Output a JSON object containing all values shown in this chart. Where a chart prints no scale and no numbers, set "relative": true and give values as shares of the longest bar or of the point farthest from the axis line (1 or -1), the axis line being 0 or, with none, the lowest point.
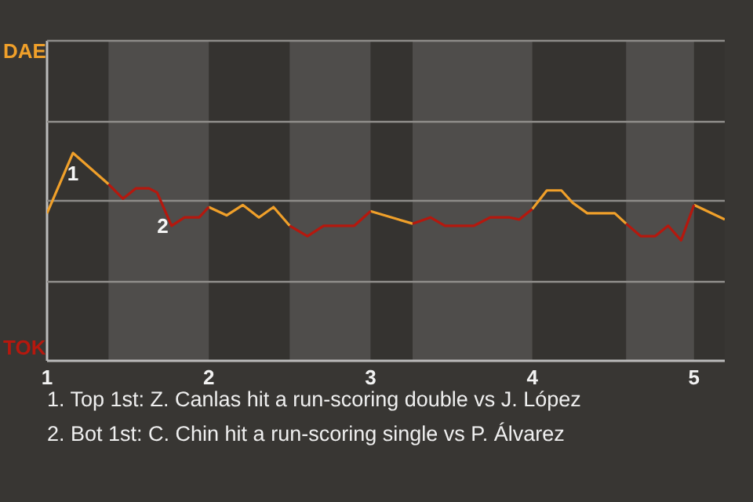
{
  "chart_data": {
    "type": "line",
    "x": [
      1,
      1.16,
      1.38,
      1.47,
      1.55,
      1.63,
      1.68,
      1.77,
      1.85,
      1.94,
      2,
      2.11,
      2.21,
      2.31,
      2.4,
      2.5,
      2.61,
      2.71,
      2.9,
      3,
      3,
      3.26,
      3.37,
      3.46,
      3.64,
      3.74,
      3.86,
      3.92,
      4,
      4.09,
      4.18,
      4.25,
      4.34,
      4.51,
      4.58,
      4.67,
      4.76,
      4.84,
      4.92,
      5,
      5.19
    ],
    "series": [
      {
        "name": "DAE",
        "color": "#f0a02a",
        "values": [
          0.71,
          1,
          0.85,
          null,
          null,
          null,
          null,
          null,
          null,
          null,
          0.74,
          0.7,
          0.75,
          0.69,
          0.74,
          0.65,
          null,
          null,
          null,
          null,
          0.72,
          0.66,
          null,
          null,
          null,
          null,
          null,
          null,
          0.73,
          0.82,
          0.82,
          0.76,
          0.71,
          0.71,
          0.66,
          null,
          null,
          null,
          null,
          0.75,
          0.68
        ]
      },
      {
        "name": "TOK",
        "color": "#b5180e",
        "values": [
          null,
          null,
          0.85,
          0.78,
          0.83,
          0.83,
          0.81,
          0.65,
          0.69,
          0.69,
          0.74,
          null,
          null,
          null,
          null,
          0.65,
          0.6,
          0.65,
          0.65,
          0.72,
          null,
          0.66,
          0.69,
          0.65,
          0.65,
          0.69,
          0.69,
          0.68,
          0.73,
          null,
          null,
          null,
          null,
          null,
          0.66,
          0.6,
          0.6,
          0.65,
          0.58,
          0.75,
          null
        ]
      }
    ],
    "relative": true,
    "xlim": [
      1,
      5.19
    ],
    "xticks": [
      1,
      2,
      3,
      4,
      5
    ],
    "ref_lines": [
      {
        "axis": "y",
        "value": 0.38,
        "color": "#8d8b88"
      },
      {
        "axis": "y",
        "value": 0.77,
        "color": "#8d8b88"
      },
      {
        "axis": "y",
        "value": 1.15,
        "color": "#8d8b88"
      },
      {
        "axis": "y",
        "value": 1.54,
        "color": "#8d8b88"
      }
    ],
    "line_style": "solid",
    "bands": [
      {
        "axis": "x",
        "from": 1.38,
        "to": 2,
        "color": "#4f4d4b"
      },
      {
        "axis": "x",
        "from": 2.5,
        "to": 3,
        "color": "#4f4d4b"
      },
      {
        "axis": "x",
        "from": 3.26,
        "to": 4,
        "color": "#4f4d4b"
      },
      {
        "axis": "x",
        "from": 4.58,
        "to": 5,
        "color": "#4f4d4b"
      }
    ],
    "annotations": [
      {
        "text": "1",
        "x": 1.16,
        "y": 1
      },
      {
        "text": "2",
        "x": 1.77,
        "y": 0.65
      },
      "1. Top 1st: Z. Canlas hit a run-scoring double vs J. López",
      "2. Bot 1st: C. Chin hit a run-scoring single vs P. Álvarez"
    ]
  }
}
